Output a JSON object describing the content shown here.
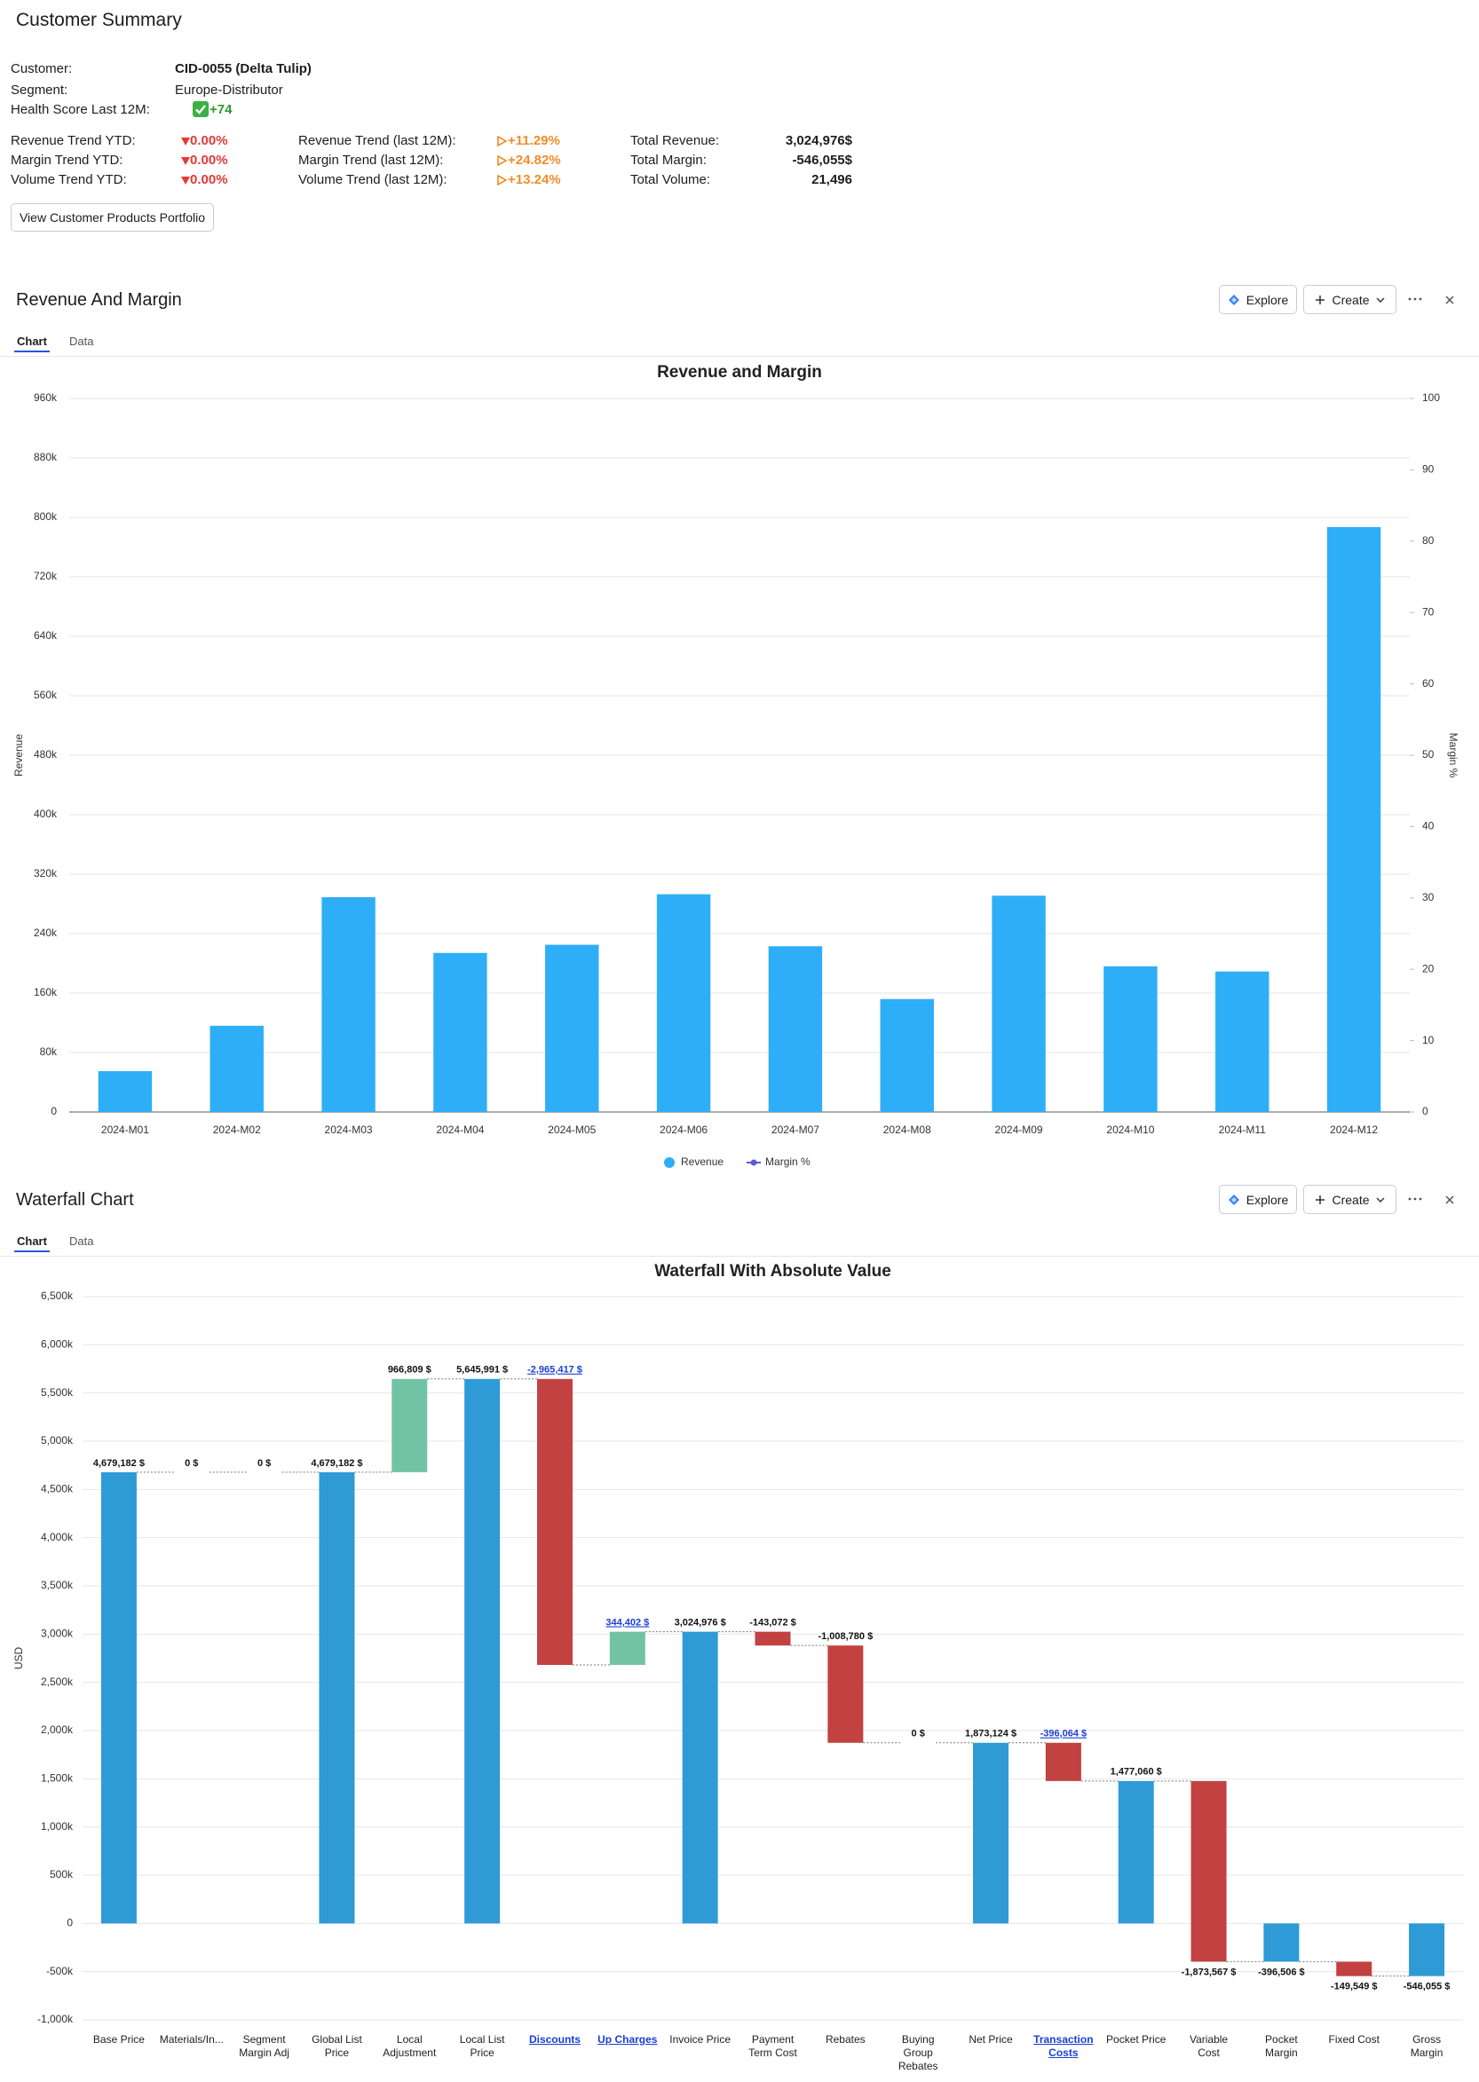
{
  "summary": {
    "title": "Customer Summary",
    "fields": [
      {
        "label": "Customer:",
        "value": "CID-0055 (Delta Tulip)"
      },
      {
        "label": "Segment:",
        "value": "Europe-Distributor"
      },
      {
        "label": "Health Score Last 12M:",
        "value": "+74"
      }
    ],
    "trend_rows": [
      [
        {
          "label": "Revenue Trend YTD:",
          "value": "0.00%"
        },
        {
          "label": "Revenue Trend (last 12M):",
          "value": "+11.29%"
        },
        {
          "label": "Total Revenue:",
          "value": "3,024,976$"
        }
      ],
      [
        {
          "label": "Margin Trend YTD:",
          "value": "0.00%"
        },
        {
          "label": "Margin Trend (last 12M):",
          "value": "+24.82%"
        },
        {
          "label": "Total Margin:",
          "value": "-546,055$"
        }
      ],
      [
        {
          "label": "Volume Trend YTD:",
          "value": "0.00%"
        },
        {
          "label": "Volume Trend (last 12M):",
          "value": "+13.24%"
        },
        {
          "label": "Total Volume:",
          "value": "21,496"
        }
      ]
    ],
    "button": "View Customer Products Portfolio"
  },
  "panels": [
    {
      "title": "Revenue And Margin",
      "tabs": [
        "Chart",
        "Data"
      ],
      "actions": [
        "Explore",
        "Create"
      ]
    },
    {
      "title": "Waterfall Chart",
      "tabs": [
        "Chart",
        "Data"
      ],
      "actions": [
        "Explore",
        "Create"
      ]
    }
  ],
  "chart_data": [
    {
      "type": "bar",
      "title": "Revenue and Margin",
      "y_label": "Revenue",
      "y2_label": "Margin %",
      "categories": [
        "2024-M01",
        "2024-M02",
        "2024-M03",
        "2024-M04",
        "2024-M05",
        "2024-M06",
        "2024-M07",
        "2024-M08",
        "2024-M09",
        "2024-M10",
        "2024-M11",
        "2024-M12"
      ],
      "series": [
        {
          "name": "Revenue",
          "type": "bar",
          "color": "#2eaef7",
          "values": [
            55000,
            116000,
            289000,
            214000,
            225000,
            293000,
            223000,
            152000,
            291000,
            196000,
            189000,
            787000
          ]
        },
        {
          "name": "Margin %",
          "type": "line",
          "axis": "y2",
          "color": "#5b5bd6",
          "values": [
            null,
            null,
            null,
            null,
            null,
            null,
            null,
            null,
            null,
            null,
            null,
            null
          ]
        }
      ],
      "ylim": [
        0,
        960000
      ],
      "yticks": [
        0,
        {
          "value": 80000,
          "label": "80k"
        },
        {
          "value": 160000,
          "label": "160k"
        },
        {
          "value": 240000,
          "label": "240k"
        },
        {
          "value": 320000,
          "label": "320k"
        },
        {
          "value": 400000,
          "label": "400k"
        },
        {
          "value": 480000,
          "label": "480k"
        },
        {
          "value": 560000,
          "label": "560k"
        },
        {
          "value": 640000,
          "label": "640k"
        },
        {
          "value": 720000,
          "label": "720k"
        },
        {
          "value": 800000,
          "label": "800k"
        },
        {
          "value": 880000,
          "label": "880k"
        },
        {
          "value": 960000,
          "label": "960k"
        }
      ],
      "y2lim": [
        0,
        100
      ],
      "y2ticks": [
        0,
        10,
        20,
        30,
        40,
        50,
        60,
        70,
        80,
        90,
        100
      ],
      "grid": true,
      "legend": "bottom"
    },
    {
      "type": "waterfall",
      "title": "Waterfall With Absolute Value",
      "y_label": "USD",
      "categories": [
        "Base Price",
        "Materials/In...",
        "Segment\nMargin Adj",
        "Global List\nPrice",
        "Local\nAdjustment",
        "Local List\nPrice",
        "Discounts",
        "Up Charges",
        "Invoice Price",
        "Payment\nTerm Cost",
        "Rebates",
        "Buying\nGroup\nRebates",
        "Net Price",
        "Transaction\nCosts",
        "Pocket Price",
        "Variable\nCost",
        "Pocket\nMargin",
        "Fixed Cost",
        "Gross\nMargin"
      ],
      "values": [
        4679182,
        0,
        0,
        4679182,
        966809,
        5645991,
        -2965417,
        344402,
        3024976,
        -143072,
        -1008780,
        0,
        1873124,
        -396064,
        1477060,
        -1873567,
        -396506,
        -149549,
        -546055
      ],
      "value_labels": [
        "4,679,182 $",
        "0 $",
        "0 $",
        "4,679,182 $",
        "966,809 $",
        "5,645,991 $",
        "-2,965,417 $",
        "344,402 $",
        "3,024,976 $",
        "-143,072 $",
        "-1,008,780 $",
        "0 $",
        "1,873,124 $",
        "-396,064 $",
        "1,477,060 $",
        "-1,873,567 $",
        "-396,506 $",
        "-149,549 $",
        "-546,055 $"
      ],
      "measure": [
        "absolute",
        "relative",
        "relative",
        "absolute",
        "relative",
        "absolute",
        "relative",
        "relative",
        "absolute",
        "relative",
        "relative",
        "relative",
        "absolute",
        "relative",
        "absolute",
        "relative",
        "absolute",
        "relative",
        "absolute"
      ],
      "linked": [
        false,
        false,
        false,
        false,
        false,
        false,
        true,
        true,
        false,
        false,
        false,
        false,
        false,
        true,
        false,
        false,
        false,
        false,
        false
      ],
      "colors": {
        "absolute": "#2e9bd6",
        "increase": "#72c3a6",
        "decrease": "#c24141",
        "link": "#1a3fd6"
      },
      "ylim": [
        -1000000,
        6500000
      ],
      "yticks": [
        {
          "value": -1000000,
          "label": "-1,000k"
        },
        {
          "value": -500000,
          "label": "-500k"
        },
        0,
        {
          "value": 500000,
          "label": "500k"
        },
        {
          "value": 1000000,
          "label": "1,000k"
        },
        {
          "value": 1500000,
          "label": "1,500k"
        },
        {
          "value": 2000000,
          "label": "2,000k"
        },
        {
          "value": 2500000,
          "label": "2,500k"
        },
        {
          "value": 3000000,
          "label": "3,000k"
        },
        {
          "value": 3500000,
          "label": "3,500k"
        },
        {
          "value": 4000000,
          "label": "4,000k"
        },
        {
          "value": 4500000,
          "label": "4,500k"
        },
        {
          "value": 5000000,
          "label": "5,000k"
        },
        {
          "value": 5500000,
          "label": "5,500k"
        },
        {
          "value": 6000000,
          "label": "6,000k"
        },
        {
          "value": 6500000,
          "label": "6,500k"
        }
      ],
      "grid": true
    }
  ]
}
